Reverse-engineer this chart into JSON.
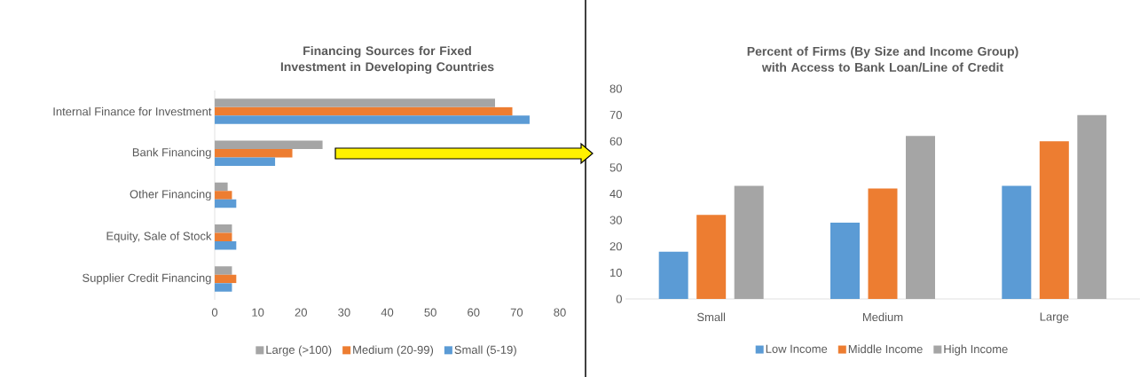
{
  "chart_data": [
    {
      "type": "bar",
      "orientation": "horizontal",
      "title": "Financing Sources for Fixed Investment in Developing Countries",
      "categories": [
        "Internal Finance for Investment",
        "Bank Financing",
        "Other Financing",
        "Equity, Sale of Stock",
        "Supplier Credit Financing"
      ],
      "series": [
        {
          "name": "Large (>100)",
          "color": "#a5a5a5",
          "values": [
            65,
            25,
            3,
            4,
            4
          ]
        },
        {
          "name": "Medium (20-99)",
          "color": "#ed7d31",
          "values": [
            69,
            18,
            4,
            4,
            5
          ]
        },
        {
          "name": "Small (5-19)",
          "color": "#5b9bd5",
          "values": [
            73,
            14,
            5,
            5,
            4
          ]
        }
      ],
      "xlim": [
        0,
        80
      ],
      "xticks": [
        0,
        10,
        20,
        30,
        40,
        50,
        60,
        70,
        80
      ],
      "legend": "bottom"
    },
    {
      "type": "bar",
      "title": "Percent of Firms (By Size and Income Group) with Access to Bank Loan/Line of Credit",
      "categories": [
        "Small",
        "Medium",
        "Large"
      ],
      "series": [
        {
          "name": "Low Income",
          "color": "#5b9bd5",
          "values": [
            18,
            29,
            43
          ]
        },
        {
          "name": "Middle Income",
          "color": "#ed7d31",
          "values": [
            32,
            42,
            60
          ]
        },
        {
          "name": "High Income",
          "color": "#a5a5a5",
          "values": [
            43,
            62,
            70
          ]
        }
      ],
      "ylim": [
        0,
        80
      ],
      "yticks": [
        0,
        10,
        20,
        30,
        40,
        50,
        60,
        70,
        80
      ],
      "legend": "bottom"
    }
  ]
}
